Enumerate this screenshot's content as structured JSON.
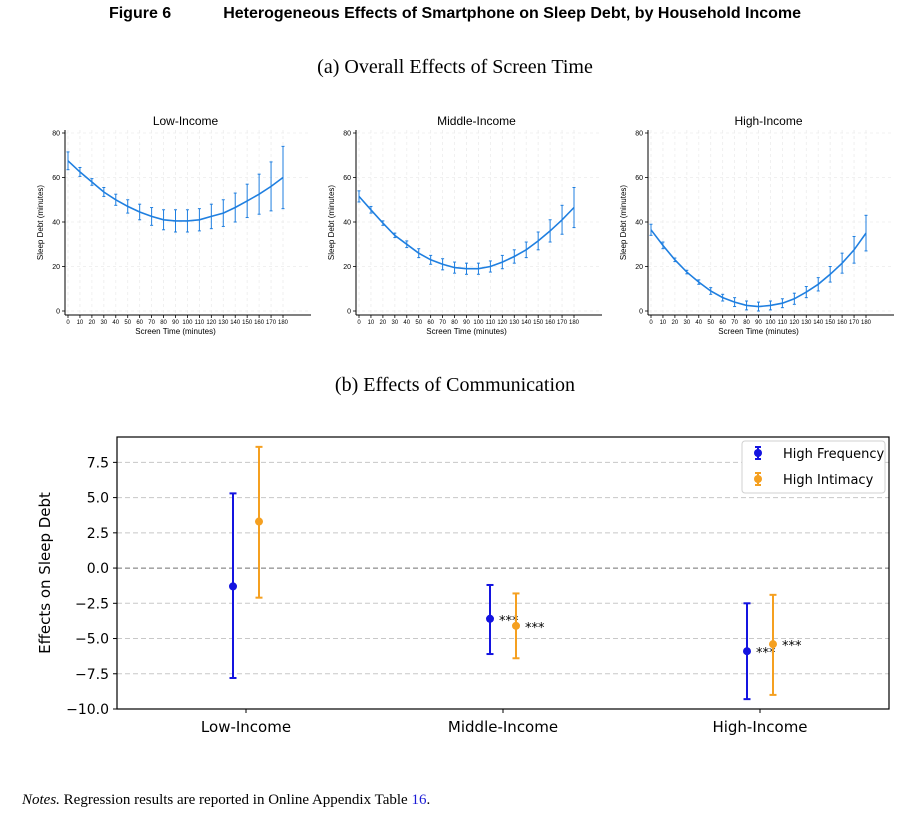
{
  "figure": {
    "number": "Figure 6",
    "title": "Heterogeneous Effects of Smartphone on Sleep Debt, by Household Income"
  },
  "section_a": {
    "title": "(a) Overall Effects of Screen Time"
  },
  "section_b": {
    "title": "(b) Effects of Communication"
  },
  "notes": {
    "lead": "Notes.",
    "text": " Regression results are reported in Online Appendix Table ",
    "ref": "16",
    "end": "."
  },
  "colors": {
    "line": "#1f7fe0",
    "high_frequency": "#1414e0",
    "high_intimacy": "#f5a020",
    "grid": "#c8c8c8",
    "zero_line": "#707070"
  },
  "chart_data": [
    {
      "type": "line",
      "title": "Low-Income",
      "xlabel": "Screen Time (minutes)",
      "ylabel": "Sleep Debt (minutes)",
      "xlim": [
        0,
        180
      ],
      "ylim": [
        0,
        80
      ],
      "x_ticks": [
        "0",
        "10",
        "20",
        "30",
        "40",
        "50",
        "60",
        "70",
        "80",
        "90",
        "100",
        "110",
        "120",
        "130",
        "140",
        "150",
        "160",
        "170",
        "180"
      ],
      "y_ticks": [
        "0",
        "20",
        "40",
        "60",
        "80"
      ],
      "grid": true,
      "x": [
        0,
        10,
        20,
        30,
        40,
        50,
        60,
        70,
        80,
        90,
        100,
        110,
        120,
        130,
        140,
        150,
        160,
        170,
        180
      ],
      "y": [
        67.5,
        62.5,
        58.0,
        53.5,
        50.0,
        47.0,
        44.5,
        42.5,
        41.0,
        40.5,
        40.5,
        41.0,
        42.5,
        44.0,
        46.5,
        49.5,
        52.5,
        56.0,
        60.0
      ],
      "err": [
        4.0,
        2.0,
        1.5,
        2.0,
        2.5,
        3.0,
        3.5,
        4.0,
        4.5,
        5.0,
        5.0,
        5.0,
        5.5,
        6.0,
        6.5,
        7.5,
        9.0,
        11.0,
        14.0
      ]
    },
    {
      "type": "line",
      "title": "Middle-Income",
      "xlabel": "Screen Time (minutes)",
      "ylabel": "Sleep Debt (minutes)",
      "xlim": [
        0,
        180
      ],
      "ylim": [
        0,
        80
      ],
      "x_ticks": [
        "0",
        "10",
        "20",
        "30",
        "40",
        "50",
        "60",
        "70",
        "80",
        "90",
        "100",
        "110",
        "120",
        "130",
        "140",
        "150",
        "160",
        "170",
        "180"
      ],
      "y_ticks": [
        "0",
        "20",
        "40",
        "60",
        "80"
      ],
      "grid": true,
      "x": [
        0,
        10,
        20,
        30,
        40,
        50,
        60,
        70,
        80,
        90,
        100,
        110,
        120,
        130,
        140,
        150,
        160,
        170,
        180
      ],
      "y": [
        51.5,
        45.5,
        39.5,
        34.0,
        30.0,
        26.0,
        23.0,
        21.0,
        19.5,
        19.0,
        19.0,
        20.0,
        22.0,
        24.5,
        27.5,
        31.5,
        36.0,
        41.0,
        46.5
      ],
      "err": [
        2.5,
        1.5,
        1.0,
        1.0,
        1.5,
        2.0,
        2.0,
        2.5,
        2.5,
        2.5,
        2.5,
        2.5,
        3.0,
        3.0,
        3.5,
        4.0,
        5.0,
        6.5,
        9.0
      ]
    },
    {
      "type": "line",
      "title": "High-Income",
      "xlabel": "Screen Time (minutes)",
      "ylabel": "Sleep Debt (minutes)",
      "xlim": [
        0,
        180
      ],
      "ylim": [
        0,
        80
      ],
      "x_ticks": [
        "0",
        "10",
        "20",
        "30",
        "40",
        "50",
        "60",
        "70",
        "80",
        "90",
        "100",
        "110",
        "120",
        "130",
        "140",
        "150",
        "160",
        "170",
        "180"
      ],
      "y_ticks": [
        "0",
        "20",
        "40",
        "60",
        "80"
      ],
      "grid": true,
      "x": [
        0,
        10,
        20,
        30,
        40,
        50,
        60,
        70,
        80,
        90,
        100,
        110,
        120,
        130,
        140,
        150,
        160,
        170,
        180
      ],
      "y": [
        36.5,
        29.5,
        23.0,
        17.5,
        13.0,
        9.0,
        6.0,
        4.0,
        2.5,
        2.0,
        2.5,
        3.5,
        5.5,
        8.5,
        12.0,
        16.5,
        21.5,
        27.5,
        35.0
      ],
      "err": [
        2.5,
        1.5,
        0.8,
        0.8,
        1.0,
        1.5,
        1.5,
        2.0,
        2.0,
        2.0,
        2.0,
        2.0,
        2.5,
        2.5,
        3.0,
        3.5,
        4.5,
        6.0,
        8.0
      ]
    },
    {
      "type": "scatter",
      "title": "",
      "xlabel": "",
      "ylabel": "Effects on Sleep Debt",
      "categories": [
        "Low-Income",
        "Middle-Income",
        "High-Income"
      ],
      "y_ticks": [
        "7.5",
        "5.0",
        "2.5",
        "0.0",
        "−2.5",
        "−5.0",
        "−7.5",
        "−10.0"
      ],
      "ylim": [
        -10.0,
        9.3
      ],
      "grid": true,
      "legend": "top-right",
      "series": [
        {
          "name": "High Frequency",
          "values": [
            -1.3,
            -3.6,
            -5.9
          ],
          "lower": [
            -7.8,
            -6.1,
            -9.3
          ],
          "upper": [
            5.3,
            -1.2,
            -2.5
          ],
          "labels": [
            "",
            "***",
            "***"
          ]
        },
        {
          "name": "High Intimacy",
          "values": [
            3.3,
            -4.1,
            -5.4
          ],
          "lower": [
            -2.1,
            -6.4,
            -9.0
          ],
          "upper": [
            8.6,
            -1.8,
            -1.9
          ],
          "labels": [
            "",
            "***",
            "***"
          ]
        }
      ]
    }
  ]
}
